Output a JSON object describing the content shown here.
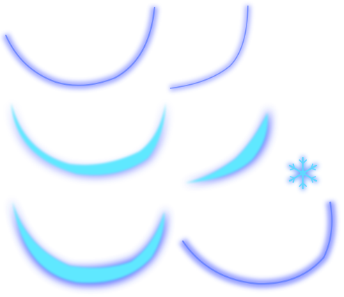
{
  "sprite_sheet": {
    "background": "#ffffff",
    "colors": {
      "glow": "#2a3cff",
      "core": "#5fe8ff",
      "core_light": "#7ff6ff",
      "thin_edge": "#6a86ff",
      "snow_outer": "#3a7bff",
      "snow_inner": "#5fd8ff"
    },
    "sprites": [
      {
        "name": "thin-slash-arc-1",
        "kind": "thin-arc"
      },
      {
        "name": "thin-slash-arc-2",
        "kind": "thin-arc"
      },
      {
        "name": "medium-slash-arc",
        "kind": "medium-arc"
      },
      {
        "name": "crescent-slash-right",
        "kind": "crescent"
      },
      {
        "name": "thick-slash-arc",
        "kind": "thick-arc"
      },
      {
        "name": "thin-slash-arc-3",
        "kind": "thin-arc"
      },
      {
        "name": "snowflake",
        "kind": "icon"
      }
    ]
  }
}
